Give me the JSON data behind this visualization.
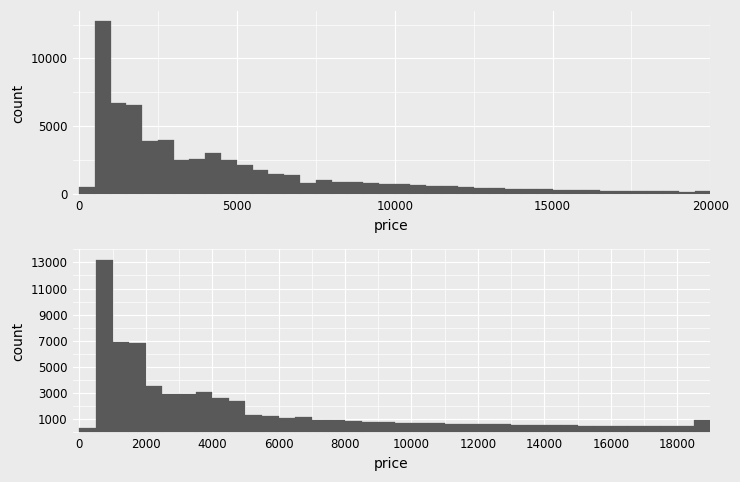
{
  "top_hist": {
    "bin_edges": [
      0,
      500,
      1000,
      1500,
      2000,
      2500,
      3000,
      3500,
      4000,
      4500,
      5000,
      5500,
      6000,
      6500,
      7000,
      7500,
      8000,
      8500,
      9000,
      9500,
      10000,
      10500,
      11000,
      11500,
      12000,
      12500,
      13000,
      13500,
      14000,
      14500,
      15000,
      15500,
      16000,
      16500,
      17000,
      17500,
      18000,
      18500,
      19000,
      19500,
      20000
    ],
    "counts": [
      500,
      12800,
      6700,
      6600,
      3900,
      4000,
      2500,
      2600,
      3000,
      2500,
      2100,
      1800,
      1500,
      1400,
      800,
      1050,
      900,
      850,
      800,
      750,
      700,
      650,
      600,
      550,
      500,
      450,
      420,
      390,
      360,
      330,
      310,
      290,
      270,
      250,
      230,
      210,
      200,
      190,
      170,
      200
    ],
    "xlim": [
      -200,
      20000
    ],
    "ylim": [
      -100,
      13500
    ],
    "xticks": [
      0,
      5000,
      10000,
      15000,
      20000
    ],
    "yticks": [
      0,
      5000,
      10000
    ],
    "ytick_labels": [
      "0",
      "5000",
      "10000"
    ],
    "xlabel": "price",
    "ylabel": "count",
    "xminor": 2500,
    "yminor": 2500
  },
  "bottom_hist": {
    "bin_edges": [
      0,
      500,
      1000,
      1500,
      2000,
      2500,
      3000,
      3500,
      4000,
      4500,
      5000,
      5500,
      6000,
      6500,
      7000,
      7500,
      8000,
      8500,
      9000,
      9500,
      10000,
      10500,
      11000,
      11500,
      12000,
      12500,
      13000,
      13500,
      14000,
      14500,
      15000,
      15500,
      16000,
      16500,
      17000,
      17500,
      18000,
      18500,
      19000
    ],
    "counts": [
      300,
      13200,
      6900,
      6850,
      3500,
      2900,
      2950,
      3050,
      2600,
      2350,
      1300,
      1250,
      1100,
      1150,
      900,
      950,
      850,
      800,
      750,
      720,
      700,
      680,
      660,
      640,
      620,
      600,
      580,
      560,
      540,
      520,
      500,
      490,
      480,
      470,
      460,
      450,
      440,
      950
    ],
    "xlim": [
      -200,
      19000
    ],
    "ylim": [
      -100,
      14000
    ],
    "xticks": [
      0,
      2000,
      4000,
      6000,
      8000,
      10000,
      12000,
      14000,
      16000,
      18000
    ],
    "yticks": [
      1000,
      3000,
      5000,
      7000,
      9000,
      11000,
      13000
    ],
    "ytick_labels": [
      "1000",
      "3000",
      "5000",
      "7000",
      "9000",
      "11000",
      "13000"
    ],
    "xlabel": "price",
    "ylabel": "count",
    "xminor": 1000,
    "yminor": 1000
  },
  "bar_color": "#595959",
  "bg_color": "#EBEBEB",
  "grid_color": "#FFFFFF",
  "axis_label_fontsize": 10,
  "tick_fontsize": 8.5
}
